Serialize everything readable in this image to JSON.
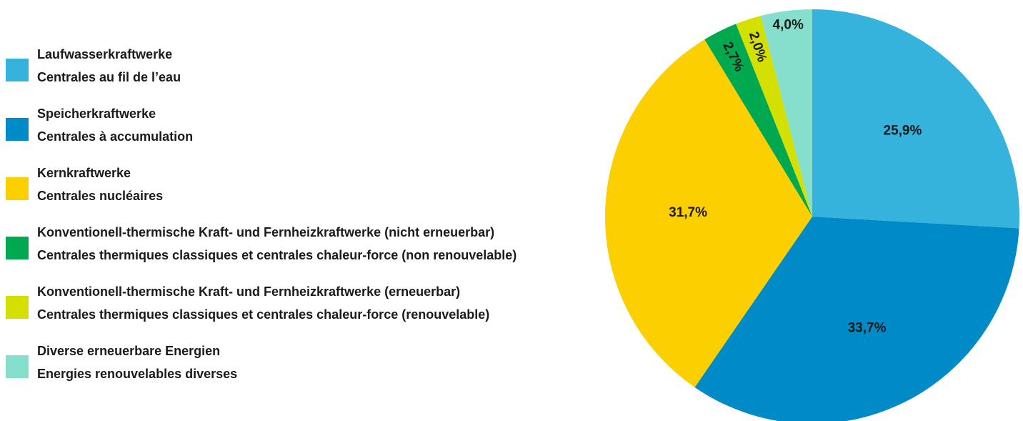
{
  "chart_data": {
    "type": "pie",
    "categories": [
      [
        "Laufwasserkraftwerke",
        "Centrales au fil de l’eau"
      ],
      [
        "Speicherkraftwerke",
        "Centrales à accumulation"
      ],
      [
        "Kernkraftwerke",
        "Centrales nucléaires"
      ],
      [
        "Konventionell-thermische Kraft- und Fernheizkraftwerke (nicht erneuerbar)",
        "Centrales thermiques classiques et centrales chaleur-force (non renouvelable)"
      ],
      [
        "Konventionell-thermische Kraft- und Fernheizkraftwerke (erneuerbar)",
        "Centrales thermiques classiques et centrales chaleur-force (renouvelable)"
      ],
      [
        "Diverse erneuerbare Energien",
        "Energies renouvelables diverses"
      ]
    ],
    "values": [
      25.9,
      33.7,
      31.7,
      2.7,
      2.0,
      4.0
    ],
    "value_labels": [
      "25,9%",
      "33,7%",
      "31,7%",
      "2,7%",
      "2,0%",
      "4,0%"
    ],
    "colors": [
      "#35b3dc",
      "#008bc8",
      "#fbcf00",
      "#00a84f",
      "#d4e000",
      "#86dfcc"
    ],
    "legend": "left"
  }
}
